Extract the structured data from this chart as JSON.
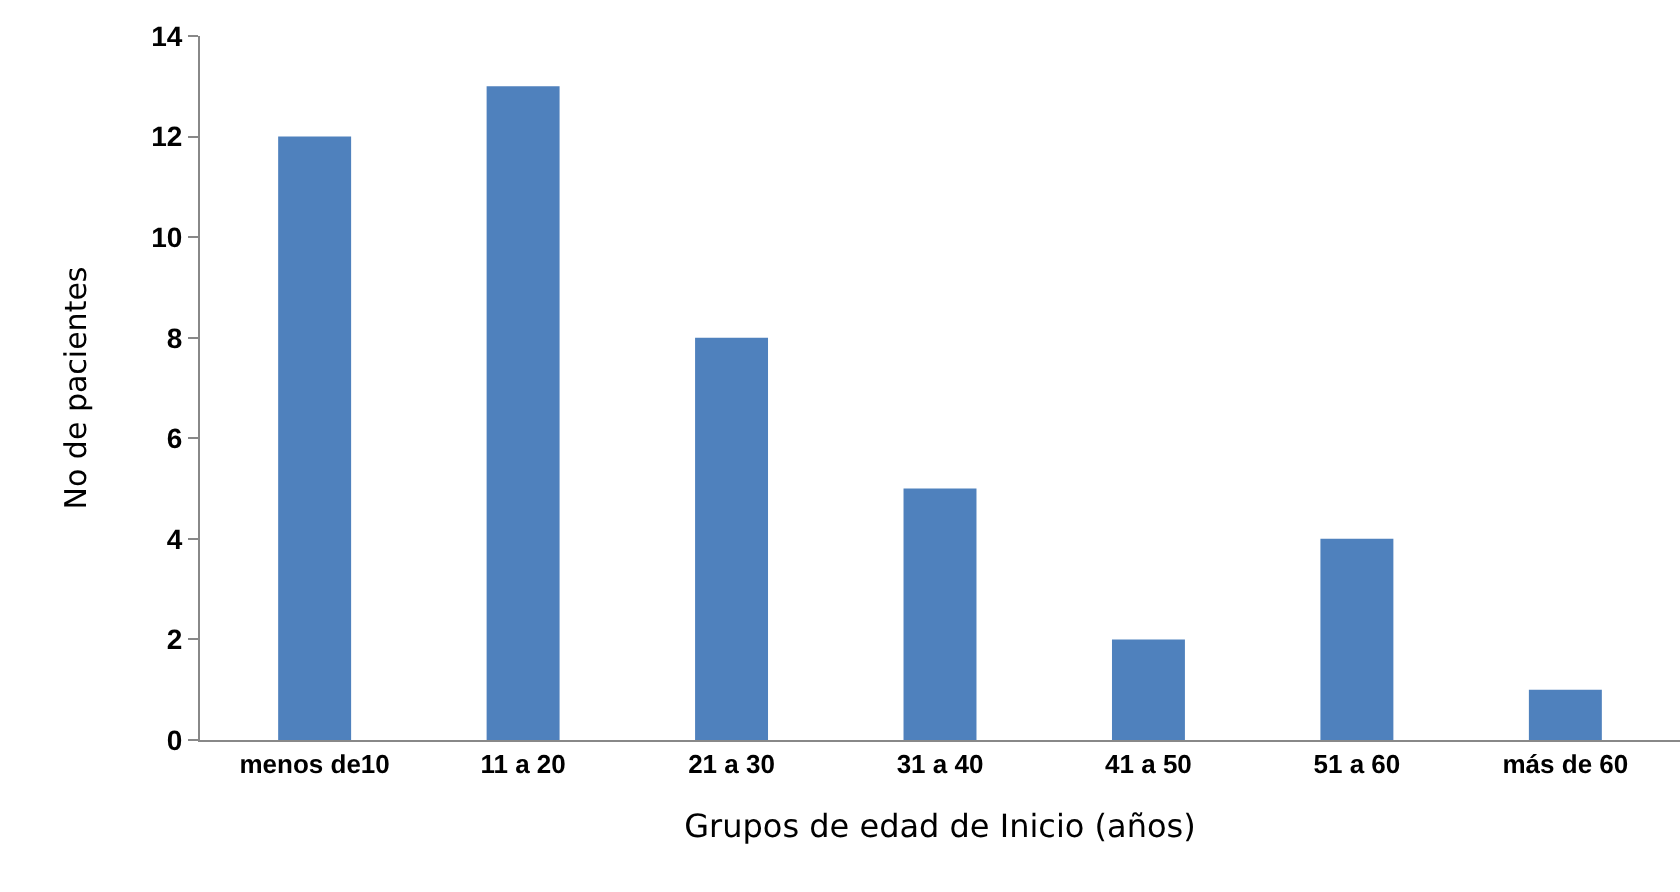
{
  "chart_data": {
    "type": "bar",
    "xlabel": "Grupos de edad de Inicio (años)",
    "ylabel": "No de pacientes",
    "categories": [
      "menos de10",
      "11 a 20",
      "21 a 30",
      "31 a 40",
      "41 a 50",
      "51 a 60",
      "más de 60"
    ],
    "values": [
      12,
      13,
      8,
      5,
      2,
      4,
      1
    ],
    "color": "#4f81bd",
    "ylim": [
      0,
      14
    ],
    "yticks": [
      0,
      2,
      4,
      6,
      8,
      10,
      12,
      14
    ],
    "grid": false,
    "legend": false
  }
}
